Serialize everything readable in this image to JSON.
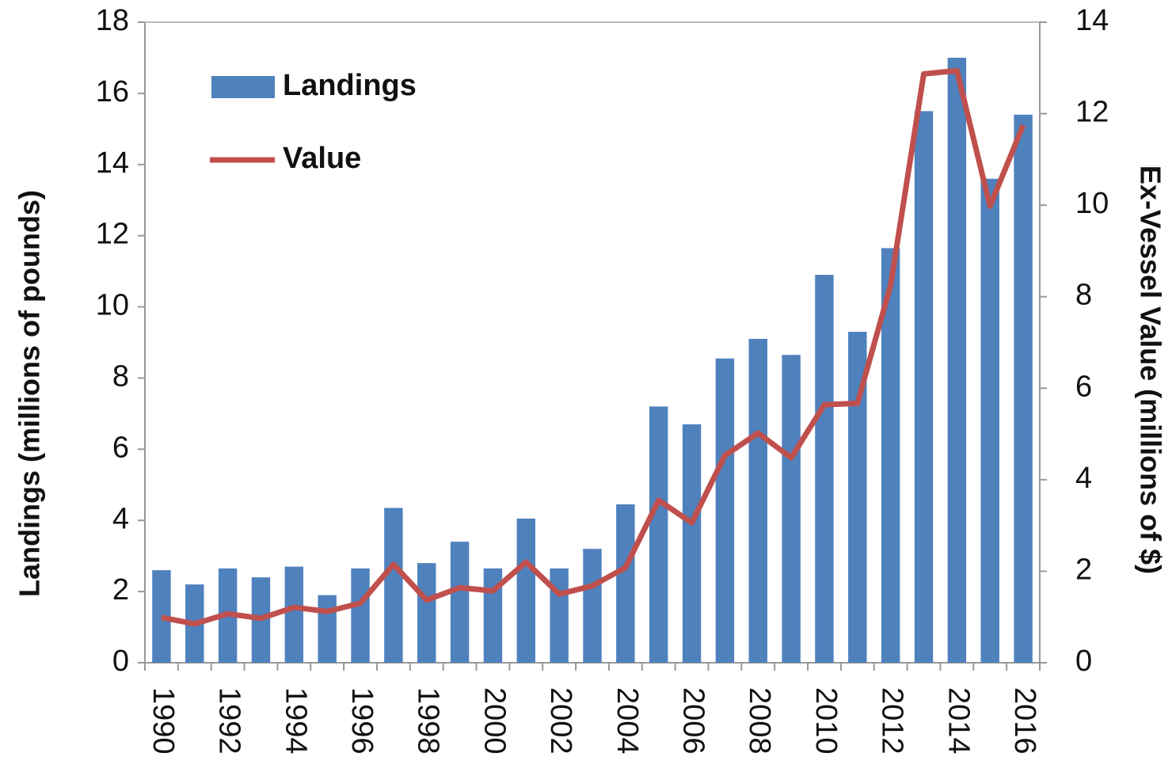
{
  "chart_data": {
    "type": "bar_line",
    "y_label": "Landings (millions of pounds)",
    "y2_label": "Ex-Vessel Value (millions of $)",
    "categories": [
      "1990",
      null,
      "1992",
      null,
      "1994",
      null,
      "1996",
      null,
      "1998",
      null,
      "2000",
      null,
      "2002",
      null,
      "2004",
      null,
      "2006",
      null,
      "2008",
      null,
      "2010",
      null,
      "2012",
      null,
      "2014",
      null,
      "2016"
    ],
    "series": [
      {
        "name": "Landings",
        "type": "bar",
        "color": "#4f81bd",
        "values": [
          2.6,
          2.2,
          2.65,
          2.4,
          2.7,
          1.9,
          2.65,
          4.35,
          2.8,
          3.4,
          2.65,
          4.05,
          2.65,
          3.2,
          4.45,
          7.2,
          6.7,
          8.55,
          9.1,
          8.65,
          10.9,
          9.3,
          11.65,
          15.5,
          17.0,
          13.6,
          15.4
        ]
      },
      {
        "name": "Value",
        "type": "line",
        "axis": "y2",
        "color": "#c0504d",
        "values": [
          0.99,
          0.85,
          1.07,
          0.97,
          1.21,
          1.12,
          1.3,
          2.15,
          1.37,
          1.64,
          1.57,
          2.2,
          1.5,
          1.68,
          2.08,
          3.55,
          3.06,
          4.53,
          5.02,
          4.48,
          5.64,
          5.67,
          8.25,
          12.87,
          12.94,
          9.98,
          11.75
        ]
      }
    ],
    "ylim": [
      0,
      18
    ],
    "yticks": [
      0,
      2,
      4,
      6,
      8,
      10,
      12,
      14,
      16,
      18
    ],
    "y2lim": [
      0,
      14
    ],
    "y2ticks": [
      0,
      2,
      4,
      6,
      8,
      10,
      12,
      14
    ],
    "legend": "upper left",
    "grid": false
  }
}
